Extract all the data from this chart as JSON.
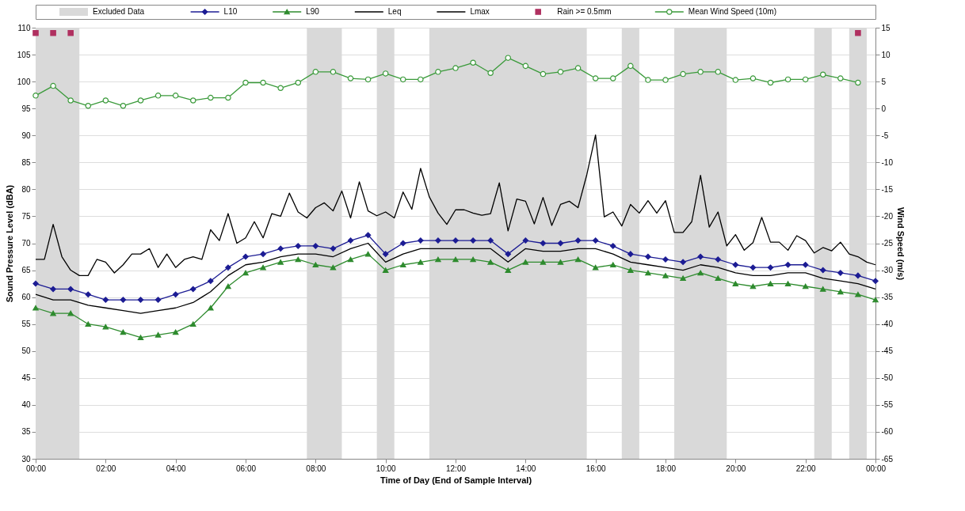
{
  "chart_data": {
    "type": "line",
    "xlabel": "Time of Day (End of Sample Interval)",
    "ylabel": "Sound Pressure Level (dBA)",
    "y2label": "Wind Speed (m/s)",
    "xlim": [
      0,
      24
    ],
    "xticks": [
      {
        "value": 0,
        "label": "00:00"
      },
      {
        "value": 2,
        "label": "02:00"
      },
      {
        "value": 4,
        "label": "04:00"
      },
      {
        "value": 6,
        "label": "06:00"
      },
      {
        "value": 8,
        "label": "08:00"
      },
      {
        "value": 10,
        "label": "10:00"
      },
      {
        "value": 12,
        "label": "12:00"
      },
      {
        "value": 14,
        "label": "14:00"
      },
      {
        "value": 16,
        "label": "16:00"
      },
      {
        "value": 18,
        "label": "18:00"
      },
      {
        "value": 20,
        "label": "20:00"
      },
      {
        "value": 22,
        "label": "22:00"
      },
      {
        "value": 24,
        "label": "00:00"
      }
    ],
    "ylim": [
      30,
      110
    ],
    "yticks": [
      30,
      35,
      40,
      45,
      50,
      55,
      60,
      65,
      70,
      75,
      80,
      85,
      90,
      95,
      100,
      105,
      110
    ],
    "y2lim": [
      -65,
      15
    ],
    "y2ticks": [
      -65,
      -60,
      -55,
      -50,
      -45,
      -40,
      -35,
      -30,
      -25,
      -20,
      -15,
      -10,
      -5,
      0,
      5,
      10,
      15
    ],
    "grid": "y",
    "legend": "top",
    "bands": [
      {
        "axis": "x",
        "from": 0,
        "to": 1.25,
        "label": "Excluded Data",
        "color": "#d9d9d9"
      },
      {
        "axis": "x",
        "from": 7.75,
        "to": 8.75,
        "color": "#d9d9d9"
      },
      {
        "axis": "x",
        "from": 9.75,
        "to": 10.25,
        "color": "#d9d9d9"
      },
      {
        "axis": "x",
        "from": 11.25,
        "to": 15.75,
        "color": "#d9d9d9"
      },
      {
        "axis": "x",
        "from": 16.75,
        "to": 17.25,
        "color": "#d9d9d9"
      },
      {
        "axis": "x",
        "from": 18.25,
        "to": 19.75,
        "color": "#d9d9d9"
      },
      {
        "axis": "x",
        "from": 22.25,
        "to": 22.75,
        "color": "#d9d9d9"
      },
      {
        "axis": "x",
        "from": 23.25,
        "to": 23.75,
        "color": "#d9d9d9"
      }
    ],
    "series": [
      {
        "name": "L10",
        "color": "#1c1c94",
        "marker": "diamond",
        "x": [
          0,
          0.5,
          1,
          1.5,
          2,
          2.5,
          3,
          3.5,
          4,
          4.5,
          5,
          5.5,
          6,
          6.5,
          7,
          7.5,
          8,
          8.5,
          9,
          9.5,
          10,
          10.5,
          11,
          11.5,
          12,
          12.5,
          13,
          13.5,
          14,
          14.5,
          15,
          15.5,
          16,
          16.5,
          17,
          17.5,
          18,
          18.5,
          19,
          19.5,
          20,
          20.5,
          21,
          21.5,
          22,
          22.5,
          23,
          23.5,
          24
        ],
        "values": [
          62.5,
          61.5,
          61.5,
          60.5,
          59.5,
          59.5,
          59.5,
          59.5,
          60.5,
          61.5,
          63,
          65.5,
          67.5,
          68,
          69,
          69.5,
          69.5,
          69,
          70.5,
          71.5,
          68,
          70,
          70.5,
          70.5,
          70.5,
          70.5,
          70.5,
          68,
          70.5,
          70,
          70,
          70.5,
          70.5,
          69.5,
          68,
          67.5,
          67,
          66.5,
          67.5,
          67,
          66,
          65.5,
          65.5,
          66,
          66,
          65,
          64.5,
          64,
          63
        ]
      },
      {
        "name": "L90",
        "color": "#2e8b2e",
        "marker": "triangle",
        "x": [
          0,
          0.5,
          1,
          1.5,
          2,
          2.5,
          3,
          3.5,
          4,
          4.5,
          5,
          5.5,
          6,
          6.5,
          7,
          7.5,
          8,
          8.5,
          9,
          9.5,
          10,
          10.5,
          11,
          11.5,
          12,
          12.5,
          13,
          13.5,
          14,
          14.5,
          15,
          15.5,
          16,
          16.5,
          17,
          17.5,
          18,
          18.5,
          19,
          19.5,
          20,
          20.5,
          21,
          21.5,
          22,
          22.5,
          23,
          23.5,
          24
        ],
        "values": [
          58,
          57,
          57,
          55,
          54.5,
          53.5,
          52.5,
          53,
          53.5,
          55,
          58,
          62,
          64.5,
          65.5,
          66.5,
          67,
          66,
          65.5,
          67,
          68,
          65,
          66,
          66.5,
          67,
          67,
          67,
          66.5,
          65,
          66.5,
          66.5,
          66.5,
          67,
          65.5,
          66,
          65,
          64.5,
          64,
          63.5,
          64.5,
          63.5,
          62.5,
          62,
          62.5,
          62.5,
          62,
          61.5,
          61,
          60.5,
          59.5
        ]
      },
      {
        "name": "Leq",
        "color": "#000000",
        "marker": "none",
        "x": [
          0,
          0.5,
          1,
          1.5,
          2,
          2.5,
          3,
          3.5,
          4,
          4.5,
          5,
          5.5,
          6,
          6.5,
          7,
          7.5,
          8,
          8.5,
          9,
          9.5,
          10,
          10.5,
          11,
          11.5,
          12,
          12.5,
          13,
          13.5,
          14,
          14.5,
          15,
          15.5,
          16,
          16.5,
          17,
          17.5,
          18,
          18.5,
          19,
          19.5,
          20,
          20.5,
          21,
          21.5,
          22,
          22.5,
          23,
          23.5,
          24
        ],
        "values": [
          60.5,
          59.5,
          59.5,
          58.5,
          58,
          57.5,
          57,
          57.5,
          58,
          59,
          61,
          64,
          66,
          66.5,
          67.5,
          68,
          68,
          67.5,
          69,
          70,
          66.5,
          68,
          69,
          69,
          69,
          69,
          69,
          66.5,
          69,
          68.5,
          68.5,
          69,
          69,
          68,
          66.5,
          66,
          65.5,
          65,
          66,
          65.5,
          64.5,
          64,
          64,
          64.5,
          64.5,
          63.5,
          63,
          62.5,
          61.5
        ]
      },
      {
        "name": "Lmax",
        "color": "#000000",
        "marker": "none",
        "x": [
          0,
          0.25,
          0.5,
          0.75,
          1,
          1.25,
          1.5,
          1.75,
          2,
          2.25,
          2.5,
          2.75,
          3,
          3.25,
          3.5,
          3.75,
          4,
          4.25,
          4.5,
          4.75,
          5,
          5.25,
          5.5,
          5.75,
          6,
          6.25,
          6.5,
          6.75,
          7,
          7.25,
          7.5,
          7.75,
          8,
          8.25,
          8.5,
          8.75,
          9,
          9.25,
          9.5,
          9.75,
          10,
          10.25,
          10.5,
          10.75,
          11,
          11.25,
          11.5,
          11.75,
          12,
          12.25,
          12.5,
          12.75,
          13,
          13.25,
          13.5,
          13.75,
          14,
          14.25,
          14.5,
          14.75,
          15,
          15.25,
          15.5,
          15.75,
          16,
          16.25,
          16.5,
          16.75,
          17,
          17.25,
          17.5,
          17.75,
          18,
          18.25,
          18.5,
          18.75,
          19,
          19.25,
          19.5,
          19.75,
          20,
          20.25,
          20.5,
          20.75,
          21,
          21.25,
          21.5,
          21.75,
          22,
          22.25,
          22.5,
          22.75,
          23,
          23.25,
          23.5,
          23.75,
          24
        ],
        "values": [
          67,
          67,
          73.5,
          67.5,
          65,
          64,
          64,
          67,
          66.5,
          64.5,
          66,
          68,
          68,
          69,
          65.5,
          68,
          65.5,
          67,
          67.5,
          67,
          72.5,
          70.5,
          75.5,
          70,
          71,
          74,
          71,
          75.5,
          75,
          79.3,
          75.8,
          74.7,
          76.6,
          77.5,
          76,
          79.7,
          74.7,
          81.4,
          76,
          75.1,
          75.8,
          74.7,
          79.5,
          76.3,
          83.9,
          78.6,
          75.6,
          73.5,
          76.2,
          76.2,
          75.6,
          75.2,
          75.5,
          81.2,
          72.3,
          78.2,
          77.8,
          73.6,
          78.5,
          73.3,
          77.2,
          77.8,
          76.6,
          82.7,
          90.1,
          74.9,
          75.8,
          73.2,
          77.2,
          75.6,
          77.9,
          75.6,
          77.9,
          72,
          72,
          74,
          82.6,
          73,
          75.8,
          69.5,
          71.6,
          68.7,
          70.1,
          74.8,
          70.2,
          70.2,
          68.7,
          71.4,
          70.5,
          68.2,
          69.2,
          68.6,
          70.2,
          68,
          67.5,
          66.5,
          66
        ]
      },
      {
        "name": "Rain >= 0.5mm",
        "color": "#b03060",
        "type": "scatter",
        "marker": "square",
        "axis": "y2",
        "x": [
          0,
          0.5,
          1,
          23.5
        ],
        "values": [
          14,
          14,
          14,
          14
        ]
      },
      {
        "name": "Mean Wind Speed (10m)",
        "color": "#3a9a3a",
        "marker": "circle",
        "axis": "y2",
        "x": [
          0,
          0.5,
          1,
          1.5,
          2,
          2.5,
          3,
          3.5,
          4,
          4.5,
          5,
          5.5,
          6,
          6.5,
          7,
          7.5,
          8,
          8.5,
          9,
          9.5,
          10,
          10.5,
          11,
          11.5,
          12,
          12.5,
          13,
          13.5,
          14,
          14.5,
          15,
          15.5,
          16,
          16.5,
          17,
          17.5,
          18,
          18.5,
          19,
          19.5,
          20,
          20.5,
          21,
          21.5,
          22,
          22.5,
          23,
          23.5
        ],
        "values": [
          2.4,
          4.2,
          1.5,
          0.5,
          1.5,
          0.5,
          1.5,
          2.4,
          2.4,
          1.5,
          2,
          2,
          4.8,
          4.8,
          3.8,
          4.8,
          6.8,
          6.8,
          5.6,
          5.4,
          6.5,
          5.4,
          5.4,
          6.8,
          7.5,
          8.5,
          6.6,
          9.4,
          7.9,
          6.4,
          6.8,
          7.5,
          5.6,
          5.6,
          7.9,
          5.3,
          5.3,
          6.4,
          6.8,
          6.8,
          5.3,
          5.6,
          4.8,
          5.4,
          5.4,
          6.3,
          5.6,
          4.8
        ]
      }
    ]
  }
}
